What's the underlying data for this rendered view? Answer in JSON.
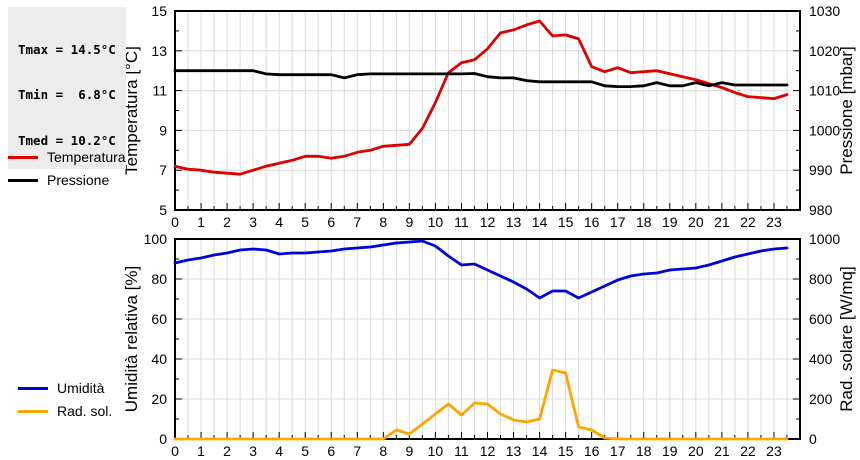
{
  "stats_box": {
    "lines": [
      "Tmax = 14.5°C",
      "Tmin =  6.8°C",
      "Tmed = 10.2°C"
    ]
  },
  "legend_top": [
    {
      "label": "Temperatura",
      "color": "#dd0000"
    },
    {
      "label": "Pressione",
      "color": "#000000"
    }
  ],
  "legend_bottom": [
    {
      "label": "Umidità",
      "color": "#0000dd"
    },
    {
      "label": "Rad. sol.",
      "color": "#ffa500"
    }
  ],
  "chart_data": [
    {
      "type": "line",
      "ylabel_left": "Temperatura [°C]",
      "ylabel_right": "Pressione [mbar]",
      "ylim_left": [
        5,
        15
      ],
      "yticks_left": [
        5,
        7,
        9,
        11,
        13,
        15
      ],
      "ylim_right": [
        980,
        1030
      ],
      "yticks_right": [
        980,
        990,
        1000,
        1010,
        1020,
        1030
      ],
      "xlim": [
        0,
        24
      ],
      "xticks": [
        0,
        1,
        2,
        3,
        4,
        5,
        6,
        7,
        8,
        9,
        10,
        11,
        12,
        13,
        14,
        15,
        16,
        17,
        18,
        19,
        20,
        21,
        22,
        23
      ],
      "xgrid_step": 0.5,
      "grid": true,
      "x": [
        0,
        0.5,
        1,
        1.5,
        2,
        2.5,
        3,
        3.5,
        4,
        4.5,
        5,
        5.5,
        6,
        6.5,
        7,
        7.5,
        8,
        8.5,
        9,
        9.5,
        10,
        10.5,
        11,
        11.5,
        12,
        12.5,
        13,
        13.5,
        14,
        14.5,
        15,
        15.5,
        16,
        16.5,
        17,
        17.5,
        18,
        18.5,
        19,
        19.5,
        20,
        20.5,
        21,
        21.5,
        22,
        22.5,
        23,
        23.5
      ],
      "series": [
        {
          "name": "Temperatura",
          "axis": "left",
          "color": "#dd0000",
          "values": [
            7.2,
            7.05,
            7.0,
            6.9,
            6.85,
            6.8,
            7.0,
            7.2,
            7.35,
            7.5,
            7.7,
            7.7,
            7.6,
            7.7,
            7.9,
            8.0,
            8.2,
            8.25,
            8.3,
            9.1,
            10.4,
            11.9,
            12.4,
            12.55,
            13.1,
            13.9,
            14.05,
            14.3,
            14.5,
            13.75,
            13.8,
            13.6,
            12.2,
            11.95,
            12.15,
            11.9,
            11.95,
            12.0,
            11.85,
            11.7,
            11.55,
            11.35,
            11.15,
            10.9,
            10.7,
            10.65,
            10.6,
            10.8
          ]
        },
        {
          "name": "Pressione",
          "axis": "right",
          "color": "#000000",
          "values": [
            1015,
            1015,
            1015,
            1015,
            1015,
            1015,
            1015,
            1014.2,
            1014,
            1014,
            1014,
            1014,
            1014,
            1013.2,
            1014,
            1014.2,
            1014.2,
            1014.2,
            1014.2,
            1014.2,
            1014.2,
            1014.2,
            1014.2,
            1014.3,
            1013.5,
            1013.2,
            1013.2,
            1012.5,
            1012.2,
            1012.2,
            1012.2,
            1012.2,
            1012.2,
            1011.2,
            1011,
            1011,
            1011.2,
            1012,
            1011.2,
            1011.2,
            1012,
            1011.2,
            1012,
            1011.4,
            1011.4,
            1011.4,
            1011.4,
            1011.4
          ]
        }
      ]
    },
    {
      "type": "line",
      "ylabel_left": "Umidità relativa [%]",
      "ylabel_right": "Rad. solare [W/mq]",
      "ylim_left": [
        0,
        100
      ],
      "yticks_left": [
        0,
        20,
        40,
        60,
        80,
        100
      ],
      "ylim_right": [
        0,
        1000
      ],
      "yticks_right": [
        0,
        200,
        400,
        600,
        800,
        1000
      ],
      "xlim": [
        0,
        24
      ],
      "xticks": [
        0,
        1,
        2,
        3,
        4,
        5,
        6,
        7,
        8,
        9,
        10,
        11,
        12,
        13,
        14,
        15,
        16,
        17,
        18,
        19,
        20,
        21,
        22,
        23
      ],
      "xgrid_step": 0.5,
      "grid": true,
      "x": [
        0,
        0.5,
        1,
        1.5,
        2,
        2.5,
        3,
        3.5,
        4,
        4.5,
        5,
        5.5,
        6,
        6.5,
        7,
        7.5,
        8,
        8.5,
        9,
        9.5,
        10,
        10.5,
        11,
        11.5,
        12,
        12.5,
        13,
        13.5,
        14,
        14.5,
        15,
        15.5,
        16,
        16.5,
        17,
        17.5,
        18,
        18.5,
        19,
        19.5,
        20,
        20.5,
        21,
        21.5,
        22,
        22.5,
        23,
        23.5
      ],
      "series": [
        {
          "name": "Umidità",
          "axis": "left",
          "color": "#0000dd",
          "values": [
            88,
            89.5,
            90.5,
            92,
            93,
            94.5,
            95,
            94.5,
            92.5,
            93,
            93,
            93.5,
            94,
            95,
            95.5,
            96,
            97,
            98,
            98.5,
            99,
            96.5,
            91.5,
            87,
            87.5,
            84.5,
            81.5,
            78.5,
            75,
            70.5,
            74,
            74,
            70.5,
            73.5,
            76.5,
            79.5,
            81.5,
            82.5,
            83,
            84.5,
            85,
            85.5,
            87,
            89,
            91,
            92.5,
            94,
            95,
            95.5
          ]
        },
        {
          "name": "Rad. sol.",
          "axis": "right",
          "color": "#ffa500",
          "values": [
            0,
            0,
            0,
            0,
            0,
            0,
            0,
            0,
            0,
            0,
            0,
            0,
            0,
            0,
            0,
            0,
            0,
            45,
            25,
            75,
            125,
            175,
            120,
            180,
            175,
            125,
            95,
            85,
            100,
            345,
            330,
            60,
            45,
            5,
            0,
            0,
            0,
            0,
            0,
            0,
            0,
            0,
            0,
            0,
            0,
            0,
            0,
            0
          ]
        }
      ]
    }
  ]
}
